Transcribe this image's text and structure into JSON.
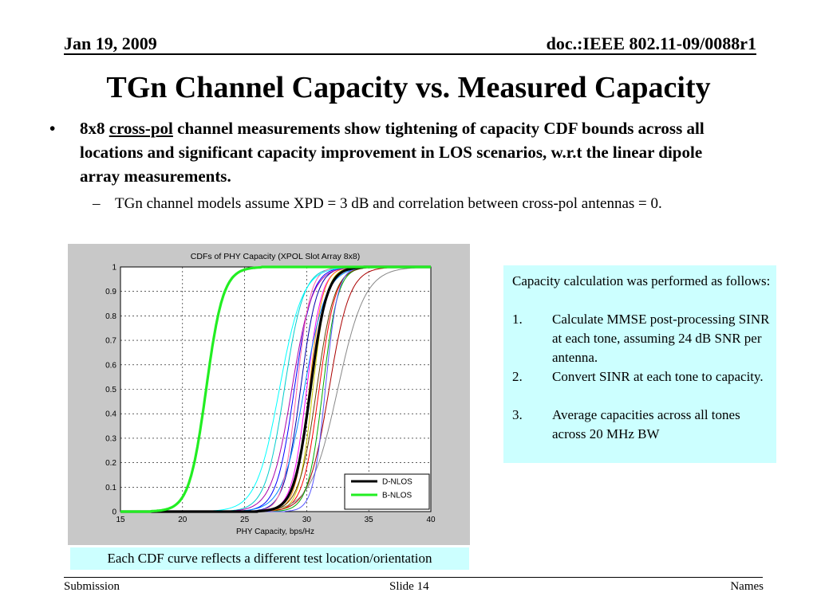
{
  "header": {
    "date": "Jan 19, 2009",
    "doc": "doc.:IEEE 802.11-09/0088r1"
  },
  "title": "TGn Channel Capacity vs. Measured Capacity",
  "bullets": {
    "b1_symbol": "•",
    "b1_pre": "8x8 ",
    "b1_underlined": "cross-pol",
    "b1_post": " channel measurements show tightening of capacity CDF bounds across all locations and significant capacity improvement in LOS scenarios, w.r.t the linear dipole array measurements.",
    "b2_symbol": "–",
    "b2": "TGn channel models assume XPD = 3 dB and correlation between cross-pol antennas = 0."
  },
  "caption": "Each CDF curve reflects a different test location/orientation",
  "info": {
    "intro": "Capacity calculation was performed as follows:",
    "steps": [
      {
        "num": "1.",
        "text": "Calculate MMSE post-processing SINR at each tone, assuming 24 dB SNR per antenna."
      },
      {
        "num": "2.",
        "text": "Convert SINR at each tone to capacity."
      },
      {
        "num": "3.",
        "text": "Average capacities across all tones across 20 MHz BW"
      }
    ]
  },
  "footer": {
    "left": "Submission",
    "middle": "Slide 14",
    "right": "Names"
  },
  "chart_data": {
    "type": "line",
    "title": "CDFs of PHY Capacity (XPOL Slot Array 8x8)",
    "xlabel": "PHY Capacity, bps/Hz",
    "ylabel": "",
    "xlim": [
      15,
      40
    ],
    "ylim": [
      0,
      1
    ],
    "xticks": [
      "15",
      "20",
      "25",
      "30",
      "35",
      "40"
    ],
    "yticks": [
      "0",
      "0.1",
      "0.2",
      "0.3",
      "0.4",
      "0.5",
      "0.6",
      "0.7",
      "0.8",
      "0.9",
      "1"
    ],
    "grid": true,
    "legend_position": "bottom-right",
    "series": [
      {
        "name": "D-NLOS",
        "color": "#000000",
        "emphasis": true,
        "mean": 30.3,
        "spread": 1.2
      },
      {
        "name": "B-NLOS",
        "color": "#22ee22",
        "emphasis": true,
        "mean": 21.9,
        "spread": 1.25
      },
      {
        "color": "#0000ff",
        "mean": 29.0,
        "spread": 1.3
      },
      {
        "color": "#ff0000",
        "mean": 31.0,
        "spread": 1.2
      },
      {
        "color": "#ff00ff",
        "mean": 30.0,
        "spread": 1.1
      },
      {
        "color": "#00cccc",
        "mean": 28.2,
        "spread": 1.4
      },
      {
        "color": "#cccc00",
        "mean": 30.5,
        "spread": 1.0
      },
      {
        "color": "#0000aa",
        "mean": 29.5,
        "spread": 1.2
      },
      {
        "color": "#aa0000",
        "mean": 31.8,
        "spread": 1.5
      },
      {
        "color": "#ff8800",
        "mean": 30.2,
        "spread": 1.0
      },
      {
        "color": "#888888",
        "mean": 32.5,
        "spread": 2.0
      },
      {
        "color": "#0088ff",
        "mean": 29.8,
        "spread": 1.6
      },
      {
        "color": "#aa00aa",
        "mean": 28.8,
        "spread": 1.5
      },
      {
        "color": "#00aa00",
        "mean": 31.3,
        "spread": 1.1
      },
      {
        "color": "#664400",
        "mean": 30.8,
        "spread": 1.3
      },
      {
        "color": "#ff66aa",
        "mean": 29.2,
        "spread": 1.0
      },
      {
        "color": "#5555ff",
        "mean": 31.5,
        "spread": 0.9
      },
      {
        "color": "#00ffff",
        "mean": 27.8,
        "spread": 1.7
      }
    ]
  }
}
